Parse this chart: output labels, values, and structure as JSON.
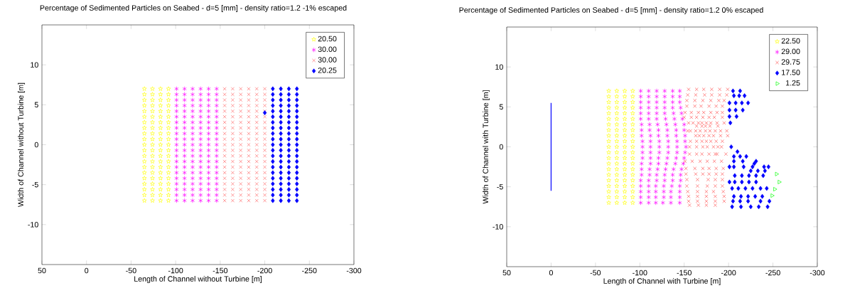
{
  "chart_data": [
    {
      "type": "scatter",
      "title": "Percentage of Sedimented Particles on Seabed - d=5 [mm] - density ratio=1.2 -1% escaped",
      "xlabel": "Length of Channel without Turbine [m]",
      "ylabel": "Width of Channel without Turbine [m]",
      "xlim": [
        50,
        -300
      ],
      "ylim": [
        -15,
        15
      ],
      "xticks": [
        50,
        0,
        -50,
        -100,
        -150,
        -200,
        -250,
        -300
      ],
      "yticks": [
        -10,
        -5,
        0,
        5,
        10
      ],
      "legend": "top right",
      "series": [
        {
          "name": "20.50",
          "color": "#ffff00",
          "marker": "star",
          "x": [
            -65,
            -74,
            -83,
            -92,
            -65,
            -74,
            -83,
            -92,
            -65,
            -74,
            -83,
            -92,
            -65,
            -74,
            -83,
            -92,
            -65,
            -74,
            -83,
            -92,
            -65,
            -74,
            -83,
            -92,
            -65,
            -74,
            -83,
            -92,
            -65,
            -74,
            -83,
            -92,
            -65,
            -74,
            -83,
            -92,
            -65,
            -74,
            -83,
            -92,
            -65,
            -74,
            -83,
            -92,
            -65,
            -74,
            -83,
            -92,
            -65,
            -74,
            -83,
            -92,
            -65,
            -74,
            -83,
            -92,
            -65,
            -74,
            -83,
            -92,
            -65,
            -74,
            -83,
            -92,
            -65,
            -74,
            -83,
            -92,
            -65,
            -74,
            -83,
            -92,
            -65,
            -74,
            -83,
            -92,
            -65,
            -74,
            -83,
            -92,
            -65,
            -74,
            -83,
            -92
          ],
          "values": [
            7,
            7,
            7,
            7,
            6.3,
            6.3,
            6.3,
            6.3,
            5.6,
            5.6,
            5.6,
            5.6,
            4.9,
            4.9,
            4.9,
            4.9,
            4.2,
            4.2,
            4.2,
            4.2,
            3.5,
            3.5,
            3.5,
            3.5,
            2.8,
            2.8,
            2.8,
            2.8,
            2.1,
            2.1,
            2.1,
            2.1,
            1.4,
            1.4,
            1.4,
            1.4,
            0.7,
            0.7,
            0.7,
            0.7,
            0,
            0,
            0,
            0,
            -0.7,
            -0.7,
            -0.7,
            -0.7,
            -1.4,
            -1.4,
            -1.4,
            -1.4,
            -2.1,
            -2.1,
            -2.1,
            -2.1,
            -2.8,
            -2.8,
            -2.8,
            -2.8,
            -3.5,
            -3.5,
            -3.5,
            -3.5,
            -4.2,
            -4.2,
            -4.2,
            -4.2,
            -4.9,
            -4.9,
            -4.9,
            -4.9,
            -5.6,
            -5.6,
            -5.6,
            -5.6,
            -6.3,
            -6.3,
            -6.3,
            -6.3,
            -7,
            -7,
            -7,
            -7
          ]
        },
        {
          "name": "30.00",
          "color": "#ff00ff",
          "x": [
            -101,
            -110,
            -119,
            -128,
            -137,
            -146,
            -101,
            -110,
            -119,
            -128,
            -137,
            -146,
            -101,
            -110,
            -119,
            -128,
            -137,
            -146,
            -101,
            -110,
            -119,
            -128,
            -137,
            -146,
            -101,
            -110,
            -119,
            -128,
            -137,
            -146,
            -101,
            -110,
            -119,
            -128,
            -137,
            -146,
            -101,
            -110,
            -119,
            -128,
            -137,
            -146,
            -101,
            -110,
            -119,
            -128,
            -137,
            -146,
            -101,
            -110,
            -119,
            -128,
            -137,
            -146,
            -101,
            -110,
            -119,
            -128,
            -137,
            -146,
            -101,
            -110,
            -119,
            -128,
            -137,
            -146,
            -101,
            -110,
            -119,
            -128,
            -137,
            -146,
            -101,
            -110,
            -119,
            -128,
            -137,
            -146,
            -101,
            -110,
            -119,
            -128,
            -137,
            -146,
            -101,
            -110,
            -119,
            -128,
            -137,
            -146,
            -101,
            -110,
            -119,
            -128,
            -137,
            -146,
            -101,
            -110,
            -119,
            -128,
            -137,
            -146,
            -101,
            -110,
            -119,
            -128,
            -137,
            -146,
            -101,
            -110,
            -119,
            -128,
            -137,
            -146,
            -101,
            -110,
            -119,
            -128,
            -137,
            -146,
            -101,
            -110,
            -119,
            -128,
            -137,
            -146
          ],
          "values": [
            7,
            7,
            7,
            7,
            7,
            7,
            6.3,
            6.3,
            6.3,
            6.3,
            6.3,
            6.3,
            5.6,
            5.6,
            5.6,
            5.6,
            5.6,
            5.6,
            4.9,
            4.9,
            4.9,
            4.9,
            4.9,
            4.9,
            4.2,
            4.2,
            4.2,
            4.2,
            4.2,
            4.2,
            3.5,
            3.5,
            3.5,
            3.5,
            3.5,
            3.5,
            2.8,
            2.8,
            2.8,
            2.8,
            2.8,
            2.8,
            2.1,
            2.1,
            2.1,
            2.1,
            2.1,
            2.1,
            1.4,
            1.4,
            1.4,
            1.4,
            1.4,
            1.4,
            0.7,
            0.7,
            0.7,
            0.7,
            0.7,
            0.7,
            0,
            0,
            0,
            0,
            0,
            0,
            -0.7,
            -0.7,
            -0.7,
            -0.7,
            -0.7,
            -0.7,
            -1.4,
            -1.4,
            -1.4,
            -1.4,
            -1.4,
            -1.4,
            -2.1,
            -2.1,
            -2.1,
            -2.1,
            -2.1,
            -2.1,
            -2.8,
            -2.8,
            -2.8,
            -2.8,
            -2.8,
            -2.8,
            -3.5,
            -3.5,
            -3.5,
            -3.5,
            -3.5,
            -3.5,
            -4.2,
            -4.2,
            -4.2,
            -4.2,
            -4.2,
            -4.2,
            -4.9,
            -4.9,
            -4.9,
            -4.9,
            -4.9,
            -4.9,
            -5.6,
            -5.6,
            -5.6,
            -5.6,
            -5.6,
            -5.6,
            -6.3,
            -6.3,
            -6.3,
            -6.3,
            -6.3,
            -6.3,
            -7,
            -7,
            -7,
            -7,
            -7,
            -7
          ]
        },
        {
          "name": "30.00",
          "color": "#ff6666",
          "marker": "cross",
          "x": [
            -155,
            -164,
            -173,
            -182,
            -191,
            -200,
            -155,
            -164,
            -173,
            -182,
            -191,
            -200,
            -155,
            -164,
            -173,
            -182,
            -191,
            -200,
            -155,
            -164,
            -173,
            -182,
            -191,
            -200,
            -155,
            -164,
            -173,
            -182,
            -191,
            -200,
            -155,
            -164,
            -173,
            -182,
            -191,
            -200,
            -155,
            -164,
            -173,
            -182,
            -191,
            -200,
            -155,
            -164,
            -173,
            -182,
            -191,
            -200,
            -155,
            -164,
            -173,
            -182,
            -191,
            -200,
            -155,
            -164,
            -173,
            -182,
            -191,
            -200,
            -155,
            -164,
            -173,
            -182,
            -191,
            -200,
            -155,
            -164,
            -173,
            -182,
            -191,
            -200,
            -155,
            -164,
            -173,
            -182,
            -191,
            -200,
            -155,
            -164,
            -173,
            -182,
            -191,
            -200,
            -155,
            -164,
            -173,
            -182,
            -191,
            -200,
            -155,
            -164,
            -173,
            -182,
            -191,
            -200,
            -155,
            -164,
            -173,
            -182,
            -191,
            -200,
            -155,
            -164,
            -173,
            -182,
            -191,
            -200,
            -155,
            -164,
            -173,
            -182,
            -191,
            -200,
            -155,
            -164,
            -173,
            -182,
            -191,
            -200,
            -155,
            -164,
            -173,
            -182,
            -191,
            -200
          ],
          "values": [
            7,
            7,
            7,
            7,
            7,
            7,
            6.3,
            6.3,
            6.3,
            6.3,
            6.3,
            6.3,
            5.6,
            5.6,
            5.6,
            5.6,
            5.6,
            5.6,
            4.9,
            4.9,
            4.9,
            4.9,
            4.9,
            4.9,
            4.2,
            4.2,
            4.2,
            4.2,
            4.2,
            4.2,
            3.5,
            3.5,
            3.5,
            3.5,
            3.5,
            3.5,
            2.8,
            2.8,
            2.8,
            2.8,
            2.8,
            2.8,
            2.1,
            2.1,
            2.1,
            2.1,
            2.1,
            2.1,
            1.4,
            1.4,
            1.4,
            1.4,
            1.4,
            1.4,
            0.7,
            0.7,
            0.7,
            0.7,
            0.7,
            0.7,
            0,
            0,
            0,
            0,
            0,
            0,
            -0.7,
            -0.7,
            -0.7,
            -0.7,
            -0.7,
            -0.7,
            -1.4,
            -1.4,
            -1.4,
            -1.4,
            -1.4,
            -1.4,
            -2.1,
            -2.1,
            -2.1,
            -2.1,
            -2.1,
            -2.1,
            -2.8,
            -2.8,
            -2.8,
            -2.8,
            -2.8,
            -2.8,
            -3.5,
            -3.5,
            -3.5,
            -3.5,
            -3.5,
            -3.5,
            -4.2,
            -4.2,
            -4.2,
            -4.2,
            -4.2,
            -4.2,
            -4.9,
            -4.9,
            -4.9,
            -4.9,
            -4.9,
            -4.9,
            -5.6,
            -5.6,
            -5.6,
            -5.6,
            -5.6,
            -5.6,
            -6.3,
            -6.3,
            -6.3,
            -6.3,
            -6.3,
            -6.3,
            -7,
            -7,
            -7,
            -7,
            -7,
            -7
          ]
        },
        {
          "name": "20.25",
          "color": "#0000ff",
          "marker": "diamond",
          "x": [
            -209,
            -218,
            -227,
            -236,
            -209,
            -218,
            -227,
            -236,
            -209,
            -218,
            -227,
            -236,
            -209,
            -218,
            -227,
            -236,
            -209,
            -218,
            -227,
            -236,
            -209,
            -218,
            -227,
            -236,
            -209,
            -218,
            -227,
            -236,
            -209,
            -218,
            -227,
            -236,
            -209,
            -218,
            -227,
            -236,
            -209,
            -218,
            -227,
            -236,
            -209,
            -218,
            -227,
            -236,
            -209,
            -218,
            -227,
            -236,
            -209,
            -218,
            -227,
            -236,
            -209,
            -218,
            -227,
            -236,
            -209,
            -218,
            -227,
            -236,
            -209,
            -218,
            -227,
            -236,
            -209,
            -218,
            -227,
            -236,
            -209,
            -218,
            -227,
            -236,
            -209,
            -218,
            -227,
            -236,
            -209,
            -218,
            -227,
            -236,
            -209,
            -218,
            -227,
            -236,
            -200
          ],
          "values": [
            7,
            7,
            7,
            7,
            6.3,
            6.3,
            6.3,
            6.3,
            5.6,
            5.6,
            5.6,
            5.6,
            4.9,
            4.9,
            4.9,
            4.9,
            4.2,
            4.2,
            4.2,
            4.2,
            3.5,
            3.5,
            3.5,
            3.5,
            2.8,
            2.8,
            2.8,
            2.8,
            2.1,
            2.1,
            2.1,
            2.1,
            1.4,
            1.4,
            1.4,
            1.4,
            0.7,
            0.7,
            0.7,
            0.7,
            0,
            0,
            0,
            0,
            -0.7,
            -0.7,
            -0.7,
            -0.7,
            -1.4,
            -1.4,
            -1.4,
            -1.4,
            -2.1,
            -2.1,
            -2.1,
            -2.1,
            -2.8,
            -2.8,
            -2.8,
            -2.8,
            -3.5,
            -3.5,
            -3.5,
            -3.5,
            -4.2,
            -4.2,
            -4.2,
            -4.2,
            -4.9,
            -4.9,
            -4.9,
            -4.9,
            -5.6,
            -5.6,
            -5.6,
            -5.6,
            -6.3,
            -6.3,
            -6.3,
            -6.3,
            -7,
            -7,
            -7,
            -7,
            4
          ]
        }
      ]
    },
    {
      "type": "scatter",
      "title": "Percentage of Sedimented Particles on Seabed - d=5 [mm] - density ratio=1.2 0% escaped",
      "xlabel": "Length of Channel with Turbine [m]",
      "ylabel": "Width of Channel with Turbine [m]",
      "xlim": [
        50,
        -300
      ],
      "ylim": [
        -15,
        15
      ],
      "xticks": [
        50,
        0,
        -50,
        -100,
        -150,
        -200,
        -250,
        -300
      ],
      "yticks": [
        -10,
        -5,
        0,
        5,
        10
      ],
      "legend": "top right",
      "series": [
        {
          "name": "22.50",
          "color": "#ffff00",
          "marker": "star",
          "x": [
            -65,
            -74,
            -83,
            -92,
            -65,
            -74,
            -83,
            -92,
            -65,
            -74,
            -83,
            -92,
            -65,
            -74,
            -83,
            -92,
            -65,
            -74,
            -83,
            -92,
            -65,
            -74,
            -83,
            -92,
            -65,
            -74,
            -83,
            -92,
            -65,
            -74,
            -83,
            -92,
            -65,
            -74,
            -83,
            -92,
            -65,
            -74,
            -83,
            -92,
            -65,
            -74,
            -83,
            -92,
            -65,
            -74,
            -83,
            -92,
            -65,
            -74,
            -83,
            -92,
            -65,
            -74,
            -83,
            -92,
            -65,
            -74,
            -83,
            -92,
            -65,
            -74,
            -83,
            -92,
            -65,
            -74,
            -83,
            -92,
            -65,
            -74,
            -83,
            -92,
            -65,
            -74,
            -83,
            -92,
            -65,
            -74,
            -83,
            -92,
            -65,
            -74,
            -83,
            -92
          ],
          "values": [
            7,
            7,
            7,
            7,
            6.3,
            6.3,
            6.3,
            6.3,
            5.6,
            5.6,
            5.6,
            5.6,
            4.9,
            4.9,
            4.9,
            4.9,
            4.2,
            4.2,
            4.2,
            4.2,
            3.5,
            3.5,
            3.5,
            3.5,
            2.8,
            2.8,
            2.8,
            2.8,
            2.1,
            2.1,
            2.1,
            2.1,
            1.4,
            1.4,
            1.4,
            1.4,
            0.7,
            0.7,
            0.7,
            0.7,
            0,
            0,
            0,
            0,
            -0.7,
            -0.7,
            -0.7,
            -0.7,
            -1.4,
            -1.4,
            -1.4,
            -1.4,
            -2.1,
            -2.1,
            -2.1,
            -2.1,
            -2.8,
            -2.8,
            -2.8,
            -2.8,
            -3.5,
            -3.5,
            -3.5,
            -3.5,
            -4.2,
            -4.2,
            -4.2,
            -4.2,
            -4.9,
            -4.9,
            -4.9,
            -4.9,
            -5.6,
            -5.6,
            -5.6,
            -5.6,
            -6.3,
            -6.3,
            -6.3,
            -6.3,
            -7,
            -7,
            -7,
            -7
          ]
        },
        {
          "name": "29.00",
          "color": "#ff00ff",
          "x": [
            -101,
            -110,
            -119,
            -128,
            -137,
            -145,
            -101,
            -110,
            -119,
            -128,
            -137,
            -145,
            -101,
            -110,
            -119,
            -128,
            -137,
            -145,
            -101,
            -110,
            -119,
            -128,
            -137,
            -146,
            -101,
            -110,
            -119,
            -128,
            -138,
            -147,
            -101,
            -110,
            -119,
            -129,
            -139,
            -148,
            -102,
            -111,
            -120,
            -130,
            -140,
            -150,
            -102,
            -111,
            -121,
            -131,
            -141,
            -150,
            -102,
            -112,
            -121,
            -131,
            -141,
            -151,
            -103,
            -112,
            -122,
            -132,
            -142,
            -151,
            -103,
            -112,
            -122,
            -132,
            -142,
            -152,
            -103,
            -112,
            -122,
            -132,
            -142,
            -151,
            -103,
            -112,
            -121,
            -131,
            -141,
            -150,
            -102,
            -112,
            -121,
            -130,
            -140,
            -149,
            -102,
            -111,
            -120,
            -129,
            -138,
            -147,
            -102,
            -111,
            -119,
            -128,
            -137,
            -146,
            -101,
            -110,
            -119,
            -128,
            -137,
            -146,
            -101,
            -110,
            -118,
            -127,
            -136,
            -145,
            -101,
            -110,
            -118,
            -127,
            -135,
            -145,
            -101,
            -110,
            -118,
            -127,
            -135,
            -145,
            -101,
            -110,
            -118,
            -126,
            -135,
            -145
          ],
          "values": [
            7,
            7,
            7,
            7,
            7,
            7,
            6.3,
            6.3,
            6.3,
            6.3,
            6.3,
            6.3,
            5.6,
            5.6,
            5.6,
            5.6,
            5.6,
            5.6,
            4.9,
            4.9,
            4.9,
            4.9,
            4.9,
            4.9,
            4.2,
            4.2,
            4.2,
            4.2,
            4.2,
            4.2,
            3.5,
            3.5,
            3.5,
            3.5,
            3.5,
            3.5,
            2.8,
            2.8,
            2.8,
            2.8,
            2.8,
            2.8,
            2.1,
            2.1,
            2.1,
            2.1,
            2.1,
            2.1,
            1.4,
            1.4,
            1.4,
            1.4,
            1.4,
            1.4,
            0.7,
            0.7,
            0.7,
            0.7,
            0.7,
            0.7,
            0,
            0,
            0,
            0,
            0,
            0,
            -0.7,
            -0.7,
            -0.7,
            -0.7,
            -0.7,
            -0.7,
            -1.4,
            -1.4,
            -1.4,
            -1.4,
            -1.4,
            -1.4,
            -2.1,
            -2.1,
            -2.1,
            -2.1,
            -2.1,
            -2.1,
            -2.8,
            -2.8,
            -2.8,
            -2.8,
            -2.8,
            -2.8,
            -3.5,
            -3.5,
            -3.5,
            -3.5,
            -3.5,
            -3.5,
            -4.2,
            -4.2,
            -4.2,
            -4.2,
            -4.2,
            -4.2,
            -4.9,
            -4.9,
            -4.9,
            -4.9,
            -4.9,
            -4.9,
            -5.6,
            -5.6,
            -5.6,
            -5.6,
            -5.6,
            -5.6,
            -6.3,
            -6.3,
            -6.3,
            -6.3,
            -6.3,
            -6.3,
            -7,
            -7,
            -7,
            -7,
            -7,
            -7
          ]
        },
        {
          "name": "29.75",
          "color": "#ff5050",
          "marker": "cross",
          "x": [
            -155,
            -164,
            -172,
            -181,
            -190,
            -199,
            -154,
            -163,
            -173,
            -181,
            -190,
            -198,
            -153,
            -162,
            -171,
            -180,
            -189,
            -195,
            -153,
            -162,
            -169,
            -178,
            -186,
            -193,
            -151,
            -158,
            -166,
            -172,
            -180,
            -187,
            -193,
            -150,
            -158,
            -164,
            -171,
            -178,
            -184,
            -193,
            -155,
            -160,
            -166,
            -170,
            -175,
            -180,
            -187,
            -195,
            -164,
            -170,
            -174,
            -179,
            -188,
            -154,
            -157,
            -163,
            -168,
            -174,
            -179,
            -185,
            -191,
            -198,
            -163,
            -167,
            -172,
            -178,
            -183,
            -191,
            -199,
            -157,
            -164,
            -170,
            -175,
            -180,
            -186,
            -193,
            -156,
            -164,
            -171,
            -176,
            -183,
            -188,
            -192,
            -156,
            -164,
            -170,
            -178,
            -185,
            -187,
            -197,
            -151,
            -159,
            -168,
            -176,
            -184,
            -192,
            -152,
            -162,
            -171,
            -178,
            -186,
            -194,
            -152,
            -163,
            -171,
            -178,
            -186,
            -193,
            -153,
            -165,
            -177,
            -185,
            -193,
            -153,
            -165,
            -176,
            -185,
            -193,
            -154,
            -165,
            -175,
            -183,
            -194,
            -155,
            -165,
            -175,
            -185,
            -195,
            -155,
            -165,
            -175,
            -185,
            -195,
            -156,
            -166,
            -175,
            -185
          ],
          "values": [
            7.2,
            7.2,
            7.2,
            7.2,
            7.2,
            7.2,
            6.5,
            6.5,
            6.5,
            6.5,
            6.5,
            6.5,
            5.8,
            5.8,
            5.8,
            5.8,
            5.8,
            5.8,
            5.1,
            5.1,
            5.1,
            5.1,
            5.1,
            5.1,
            4.3,
            4.3,
            4.3,
            4.3,
            4.3,
            4.3,
            4.3,
            3.7,
            3.7,
            3.7,
            3.7,
            3.7,
            3.7,
            3.7,
            3,
            3,
            3,
            3,
            3,
            3,
            3,
            3,
            2.6,
            2.6,
            2.6,
            2.6,
            2.6,
            2,
            2,
            2,
            2,
            2,
            2,
            2,
            2,
            2,
            1.4,
            1.4,
            1.4,
            1.4,
            1.4,
            1.4,
            1.4,
            0.7,
            0.7,
            0.7,
            0.7,
            0.7,
            0.7,
            0.7,
            0,
            0,
            0,
            0,
            0,
            0,
            0,
            -0.9,
            -0.9,
            -0.9,
            -0.9,
            -0.9,
            -0.9,
            -0.9,
            -1.8,
            -1.8,
            -1.8,
            -1.8,
            -1.8,
            -1.8,
            -2.7,
            -2.7,
            -2.7,
            -2.7,
            -2.7,
            -2.7,
            -3.4,
            -3.4,
            -3.4,
            -3.4,
            -3.4,
            -3.4,
            -4.1,
            -4.1,
            -4.1,
            -4.1,
            -4.1,
            -4.9,
            -4.9,
            -4.9,
            -4.9,
            -4.9,
            -5.6,
            -5.6,
            -5.6,
            -5.6,
            -5.6,
            -6.2,
            -6.2,
            -6.2,
            -6.2,
            -6.2,
            -6.8,
            -6.8,
            -6.8,
            -6.8,
            -6.8,
            -7.3,
            -7.3,
            -7.3,
            -7.3
          ]
        },
        {
          "name": "17.50",
          "color": "#0000ff",
          "marker": "diamond",
          "x": [
            -205,
            -213,
            -206,
            -212,
            -218,
            -201,
            -208,
            -215,
            -222,
            -201,
            -208,
            -216,
            -201,
            -209,
            -202,
            -203,
            -210,
            -206,
            -213,
            -220,
            -206,
            -216,
            -231,
            -229,
            -201,
            -206,
            -217,
            -227,
            -240,
            -245,
            -225,
            -233,
            -241,
            -207,
            -215,
            -223,
            -231,
            -239,
            -201,
            -207,
            -215,
            -223,
            -231,
            -204,
            -211,
            -219,
            -227,
            -236,
            -243,
            -206,
            -214,
            -222,
            -230,
            -238,
            -205,
            -213,
            -222,
            -236,
            -246,
            -204,
            -214,
            -225,
            -234,
            -244
          ],
          "values": [
            7,
            7,
            6.4,
            6.4,
            6.4,
            5.5,
            5.5,
            5.5,
            5.5,
            4.6,
            4.6,
            4.6,
            3.8,
            3.8,
            3,
            0,
            -0.6,
            -1.2,
            -1.2,
            -1.2,
            -1.8,
            -1.8,
            -1.8,
            -2.1,
            -2.5,
            -2.5,
            -2.5,
            -2.5,
            -2.5,
            -2.5,
            -3,
            -3,
            -3,
            -3.6,
            -3.6,
            -3.6,
            -3.6,
            -3.6,
            -4.4,
            -4.4,
            -4.4,
            -4.4,
            -4.4,
            -5.2,
            -5.2,
            -5.2,
            -5.2,
            -5.2,
            -5.2,
            -6.2,
            -6.2,
            -6.2,
            -6.2,
            -6.2,
            -6.8,
            -6.8,
            -6.8,
            -6.8,
            -6.8,
            -7.5,
            -7.5,
            -7.5,
            -7.5,
            -7.5
          ]
        },
        {
          "name": "1.25",
          "color": "#00ff00",
          "marker": "triangle",
          "x": [
            -254,
            -257,
            -252,
            -249
          ],
          "values": [
            -3.4,
            -4.4,
            -5.3,
            -6.1
          ]
        },
        {
          "type": "line",
          "color": "#0000ff",
          "x": [
            0,
            0
          ],
          "values": [
            5.5,
            -5.5
          ]
        }
      ]
    }
  ]
}
